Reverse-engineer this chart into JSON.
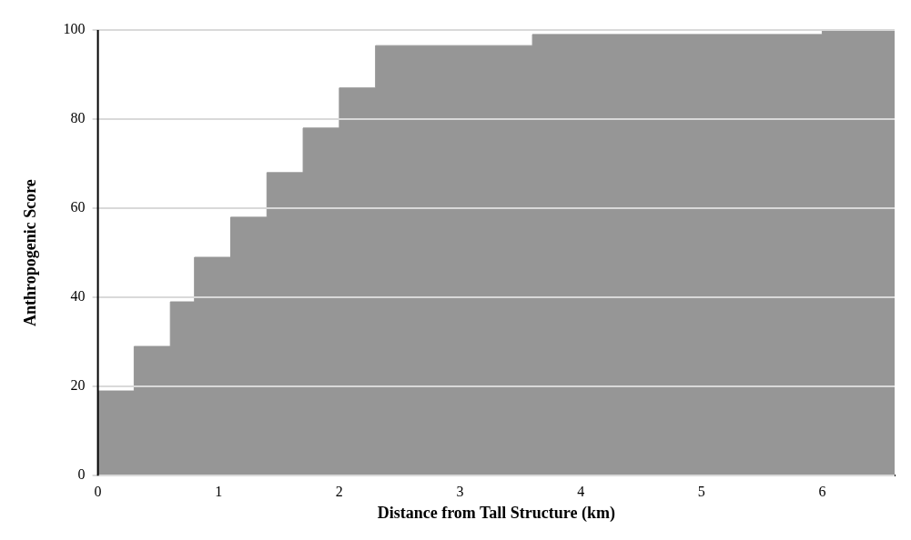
{
  "chart_data": {
    "type": "area",
    "xlabel": "Distance from Tall Structure (km)",
    "ylabel": "Anthropogenic Score",
    "x": [
      0,
      0.3,
      0.3,
      0.6,
      0.6,
      0.8,
      0.8,
      1.1,
      1.1,
      1.4,
      1.4,
      1.7,
      1.7,
      2.0,
      2.0,
      2.3,
      2.3,
      3.6,
      3.6,
      6.0,
      6.0,
      6.6
    ],
    "series": [
      {
        "color": "#969696",
        "values": [
          19,
          19,
          29,
          29,
          39,
          39,
          49,
          49,
          58,
          58,
          68,
          68,
          78,
          78,
          87,
          87,
          96.5,
          96.5,
          99,
          99,
          100,
          100
        ]
      }
    ],
    "xlim": [
      0,
      6.6
    ],
    "xticks": [
      0,
      1,
      2,
      3,
      4,
      5,
      6
    ],
    "ylim": [
      0,
      100
    ],
    "yticks": [
      0,
      20,
      40,
      60,
      80,
      100
    ],
    "grid": "y",
    "legend": false,
    "marker": "none"
  }
}
